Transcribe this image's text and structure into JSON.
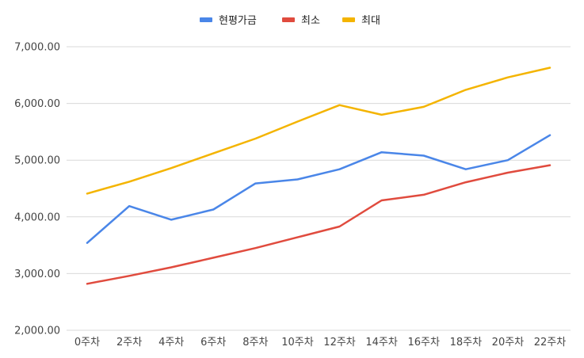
{
  "chart_data": {
    "type": "line",
    "title": "",
    "xlabel": "",
    "ylabel": "",
    "categories": [
      "0주차",
      "2주차",
      "4주차",
      "6주차",
      "8주차",
      "10주차",
      "12주차",
      "14주차",
      "16주차",
      "18주차",
      "20주차",
      "22주차"
    ],
    "ylim": [
      2000,
      7000
    ],
    "yticks": [
      "2,000.00",
      "3,000.00",
      "4,000.00",
      "5,000.00",
      "6,000.00",
      "7,000.00"
    ],
    "ytick_values": [
      2000,
      3000,
      4000,
      5000,
      6000,
      7000
    ],
    "grid": true,
    "legend_position": "top",
    "series": [
      {
        "name": "현평가금",
        "color": "#4a86e8",
        "values": [
          3540,
          4190,
          3950,
          4130,
          4590,
          4660,
          4840,
          5140,
          5080,
          4840,
          5000,
          5440
        ]
      },
      {
        "name": "최소",
        "color": "#e04b3e",
        "values": [
          2820,
          2960,
          3110,
          3280,
          3450,
          3640,
          3830,
          4290,
          4390,
          4610,
          4780,
          4910
        ]
      },
      {
        "name": "최대",
        "color": "#f4b400",
        "values": [
          4410,
          4620,
          4860,
          5120,
          5380,
          5680,
          5970,
          5800,
          5940,
          6240,
          6460,
          6630
        ]
      }
    ]
  }
}
